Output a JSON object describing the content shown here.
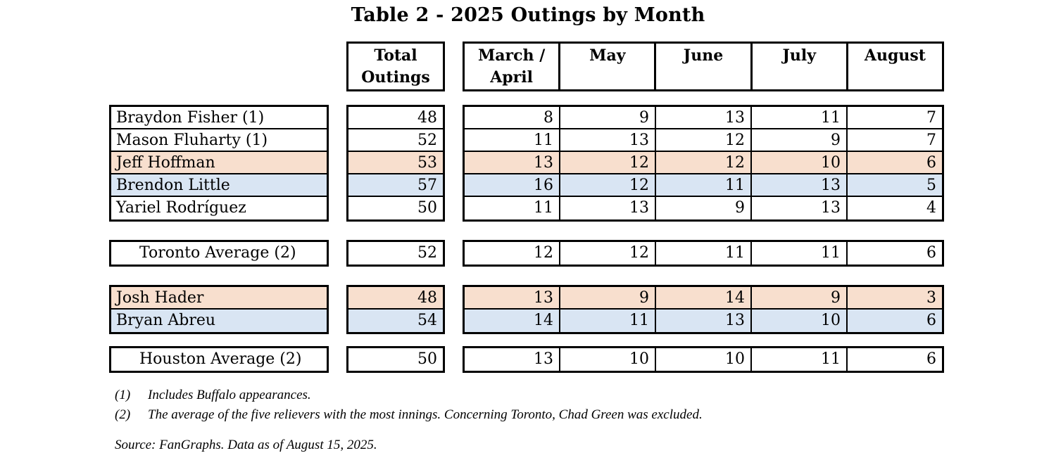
{
  "title": "Table 2 - 2025 Outings by Month",
  "header": {
    "total": "Total Outings",
    "months": [
      "March / April",
      "May",
      "June",
      "July",
      "August"
    ]
  },
  "colors": {
    "highlight_peach": "#F8DFCE",
    "highlight_blue": "#D9E5F3",
    "border": "#000000"
  },
  "toronto": {
    "players": [
      {
        "name": "Braydon Fisher (1)",
        "total": "48",
        "months": [
          "8",
          "9",
          "13",
          "11",
          "7"
        ],
        "row_color": ""
      },
      {
        "name": "Mason Fluharty (1)",
        "total": "52",
        "months": [
          "11",
          "13",
          "12",
          "9",
          "7"
        ],
        "row_color": ""
      },
      {
        "name": "Jeff Hoffman",
        "total": "53",
        "months": [
          "13",
          "12",
          "12",
          "10",
          "6"
        ],
        "row_color": "#F8DFCE"
      },
      {
        "name": "Brendon Little",
        "total": "57",
        "months": [
          "16",
          "12",
          "11",
          "13",
          "5"
        ],
        "row_color": "#D9E5F3"
      },
      {
        "name": "Yariel Rodríguez",
        "total": "50",
        "months": [
          "11",
          "13",
          "9",
          "13",
          "4"
        ],
        "row_color": ""
      }
    ],
    "average": {
      "name": "Toronto Average (2)",
      "total": "52",
      "months": [
        "12",
        "12",
        "11",
        "11",
        "6"
      ]
    }
  },
  "houston": {
    "players": [
      {
        "name": "Josh Hader",
        "total": "48",
        "months": [
          "13",
          "9",
          "14",
          "9",
          "3"
        ],
        "row_color": "#F8DFCE"
      },
      {
        "name": "Bryan Abreu",
        "total": "54",
        "months": [
          "14",
          "11",
          "13",
          "10",
          "6"
        ],
        "row_color": "#D9E5F3"
      }
    ],
    "average": {
      "name": "Houston Average (2)",
      "total": "50",
      "months": [
        "13",
        "10",
        "10",
        "11",
        "6"
      ]
    }
  },
  "footnotes": [
    {
      "marker": "(1)",
      "text": "Includes Buffalo appearances."
    },
    {
      "marker": "(2)",
      "text": "The average of the five relievers with the most innings. Concerning Toronto, Chad Green was excluded."
    }
  ],
  "source": "Source: FanGraphs. Data as of August 15, 2025.",
  "chart_data": {
    "type": "table",
    "title": "Table 2 - 2025 Outings by Month",
    "columns": [
      "",
      "Total Outings",
      "March / April",
      "May",
      "June",
      "July",
      "August"
    ],
    "rows": [
      [
        "Braydon Fisher (1)",
        48,
        8,
        9,
        13,
        11,
        7
      ],
      [
        "Mason Fluharty (1)",
        52,
        11,
        13,
        12,
        9,
        7
      ],
      [
        "Jeff Hoffman",
        53,
        13,
        12,
        12,
        10,
        6
      ],
      [
        "Brendon Little",
        57,
        16,
        12,
        11,
        13,
        5
      ],
      [
        "Yariel Rodríguez",
        50,
        11,
        13,
        9,
        13,
        4
      ],
      [
        "Toronto Average (2)",
        52,
        12,
        12,
        11,
        11,
        6
      ],
      [
        "Josh Hader",
        48,
        13,
        9,
        14,
        9,
        3
      ],
      [
        "Bryan Abreu",
        54,
        14,
        11,
        13,
        10,
        6
      ],
      [
        "Houston Average (2)",
        50,
        13,
        10,
        10,
        11,
        6
      ]
    ],
    "notes": "Rows Jeff Hoffman and Josh Hader highlighted peach; Brendon Little and Bryan Abreu highlighted light blue."
  }
}
